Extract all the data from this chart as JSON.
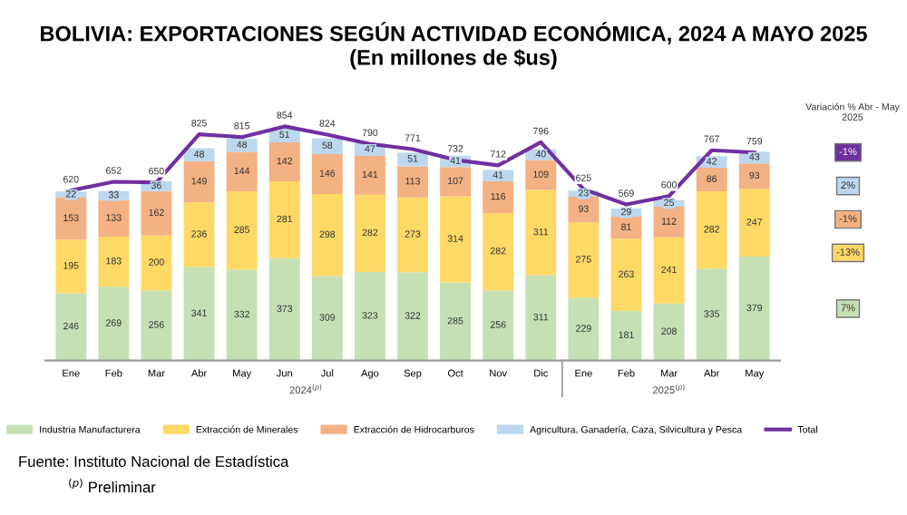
{
  "chart_data": {
    "type": "bar",
    "stacked": true,
    "title": "BOLIVIA: EXPORTACIONES SEGÚN ACTIVIDAD ECONÓMICA, 2024 A MAYO 2025",
    "subtitle": "(En millones de $us)",
    "categories": [
      "Ene",
      "Feb",
      "Mar",
      "Abr",
      "May",
      "Jun",
      "Jul",
      "Ago",
      "Sep",
      "Oct",
      "Nov",
      "Dic",
      "Ene",
      "Feb",
      "Mar",
      "Abr",
      "May"
    ],
    "series": [
      {
        "name": "Industria Manufacturera",
        "color": "#c6e0b4",
        "values": [
          246,
          269,
          256,
          341,
          332,
          373,
          309,
          323,
          322,
          285,
          256,
          311,
          229,
          181,
          208,
          335,
          379
        ]
      },
      {
        "name": "Extracción de Minerales",
        "color": "#ffd966",
        "values": [
          195,
          183,
          200,
          236,
          285,
          281,
          298,
          282,
          273,
          314,
          282,
          311,
          275,
          263,
          241,
          282,
          247
        ]
      },
      {
        "name": "Extracción de Hidrocarburos",
        "color": "#f4b183",
        "values": [
          153,
          133,
          162,
          149,
          144,
          142,
          146,
          141,
          113,
          107,
          116,
          109,
          93,
          81,
          112,
          86,
          93
        ]
      },
      {
        "name": "Agricultura, Ganadería, Caza, Silvicultura y Pesca",
        "color": "#bdd7ee",
        "values": [
          22,
          33,
          36,
          48,
          48,
          51,
          58,
          47,
          51,
          41,
          41,
          40,
          23,
          29,
          25,
          42,
          43
        ]
      },
      {
        "name": "Total",
        "type": "line",
        "color": "#7030a0",
        "values": [
          620,
          652,
          650,
          825,
          815,
          854,
          824,
          790,
          771,
          732,
          712,
          796,
          625,
          569,
          600,
          767,
          759
        ]
      }
    ],
    "data_labels": true,
    "tick_labels": "x",
    "legend": "bottom",
    "grid": false,
    "annotations": [
      "2024$^{(p)}$",
      "2025$^{(p)}$",
      "Variación % Abr - May 2025",
      "-1%",
      "2%",
      "-1%",
      "-13%",
      "7%",
      "Fuente: Instituto Nacional de Estadística",
      "$^{(p)}$ Preliminar"
    ]
  }
}
